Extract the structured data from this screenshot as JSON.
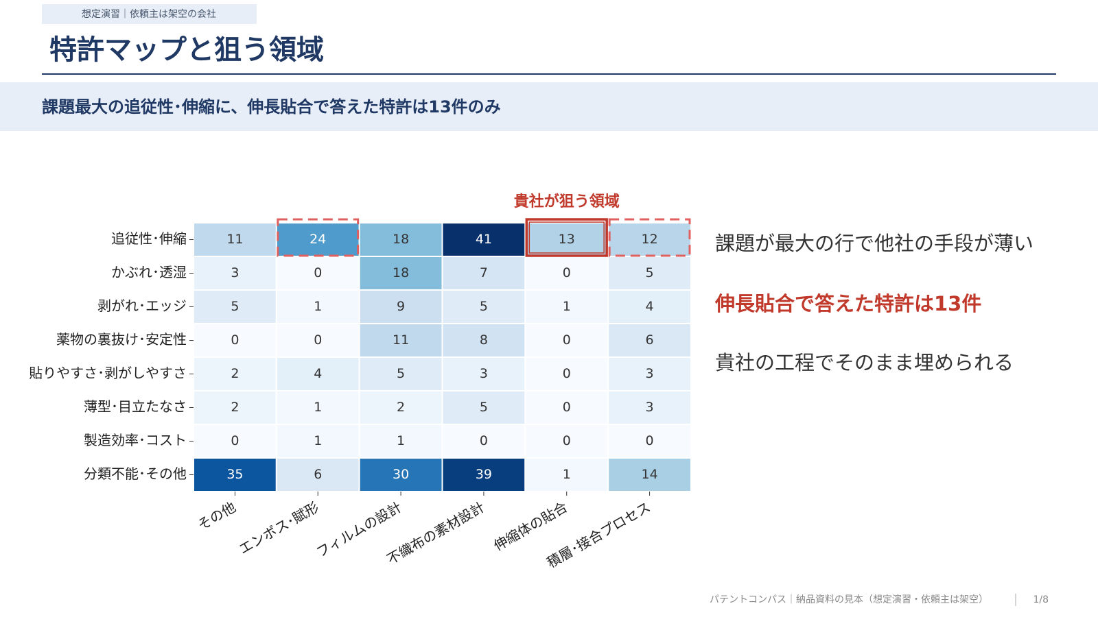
{
  "header": {
    "tag": "想定演習｜依頼主は架空の会社",
    "title": "特許マップと狙う領域",
    "subtitle": "課題最大の追従性･伸縮に、伸長貼合で答えた特許は13件のみ"
  },
  "chart_data": {
    "type": "heatmap",
    "colormap": "Blues",
    "annotation": "貴社が狙う領域",
    "rows": [
      "追従性･伸縮",
      "かぶれ･透湿",
      "剥がれ･エッジ",
      "薬物の裏抜け･安定性",
      "貼りやすさ･剥がしやすさ",
      "薄型･目立たなさ",
      "製造効率･コスト",
      "分類不能･その他"
    ],
    "columns": [
      "その他",
      "エンボス･賦形",
      "フィルムの設計",
      "不織布の素材設計",
      "伸縮体の貼合",
      "積層･接合プロセス"
    ],
    "values": [
      [
        11,
        24,
        18,
        41,
        13,
        12
      ],
      [
        3,
        0,
        18,
        7,
        0,
        5
      ],
      [
        5,
        1,
        9,
        5,
        1,
        4
      ],
      [
        0,
        0,
        11,
        8,
        0,
        6
      ],
      [
        2,
        4,
        5,
        3,
        0,
        3
      ],
      [
        2,
        1,
        2,
        5,
        0,
        3
      ],
      [
        0,
        1,
        1,
        0,
        0,
        0
      ],
      [
        35,
        6,
        30,
        39,
        1,
        14
      ]
    ]
  },
  "points": [
    "課題が最大の行で他社の手段が薄い",
    "伸長貼合で答えた特許は13件",
    "貴社の工程でそのまま埋められる"
  ],
  "footer": {
    "text": "パテントコンパス｜納品資料の見本（想定演習・依頼主は架空）",
    "page": "1/8"
  }
}
